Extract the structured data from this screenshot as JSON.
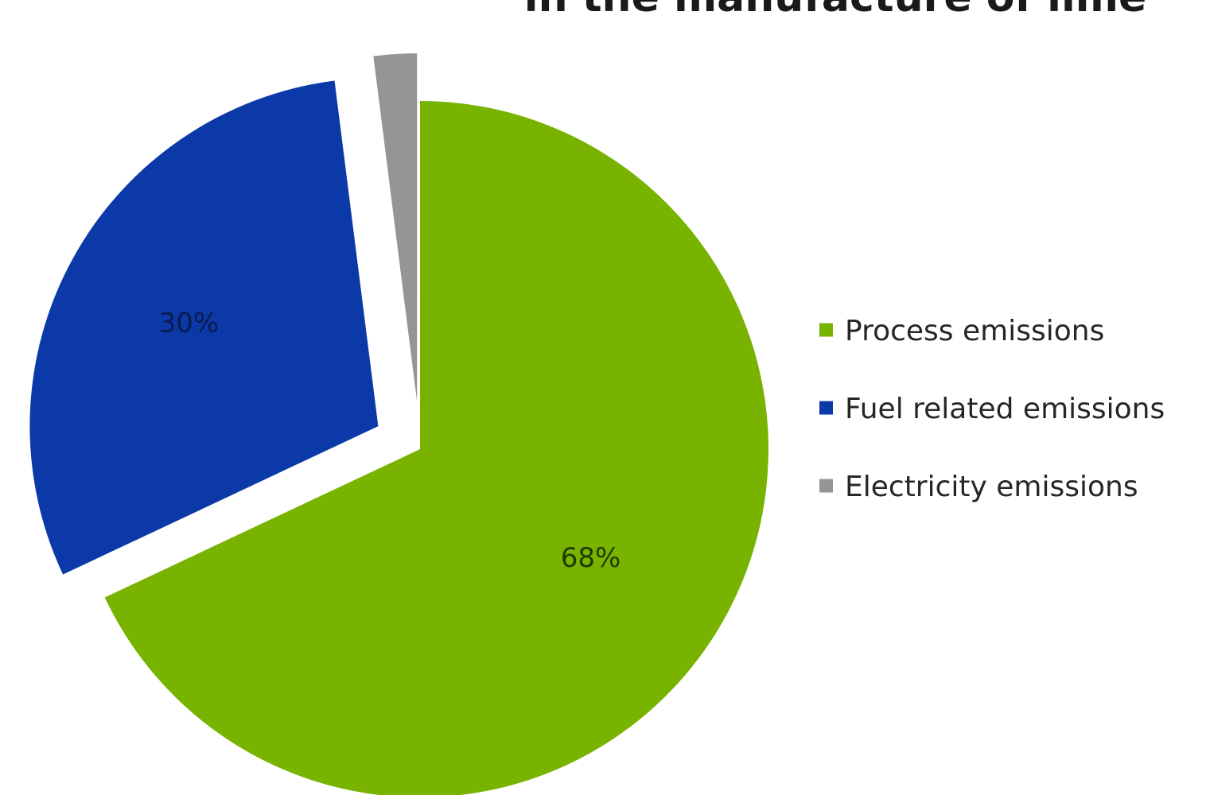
{
  "chart_data": {
    "type": "pie",
    "title": "in the manufacture of lime",
    "series": [
      {
        "slices": [
          {
            "label": "Process emissions",
            "value": 68,
            "display": "68%",
            "color": "#78b300",
            "label_color": "#1f3a00",
            "exploded": false
          },
          {
            "label": "Fuel related emissions",
            "value": 30,
            "display": "30%",
            "color": "#0b3aa8",
            "label_color": "#0a1a4a",
            "exploded": true
          },
          {
            "label": "Electricity emissions",
            "value": 2,
            "display": "2%",
            "color": "#959595",
            "label_color": "#3d3d3d",
            "exploded": true
          }
        ]
      }
    ],
    "legend_position": "right",
    "start_angle": "12 o'clock, clockwise"
  }
}
